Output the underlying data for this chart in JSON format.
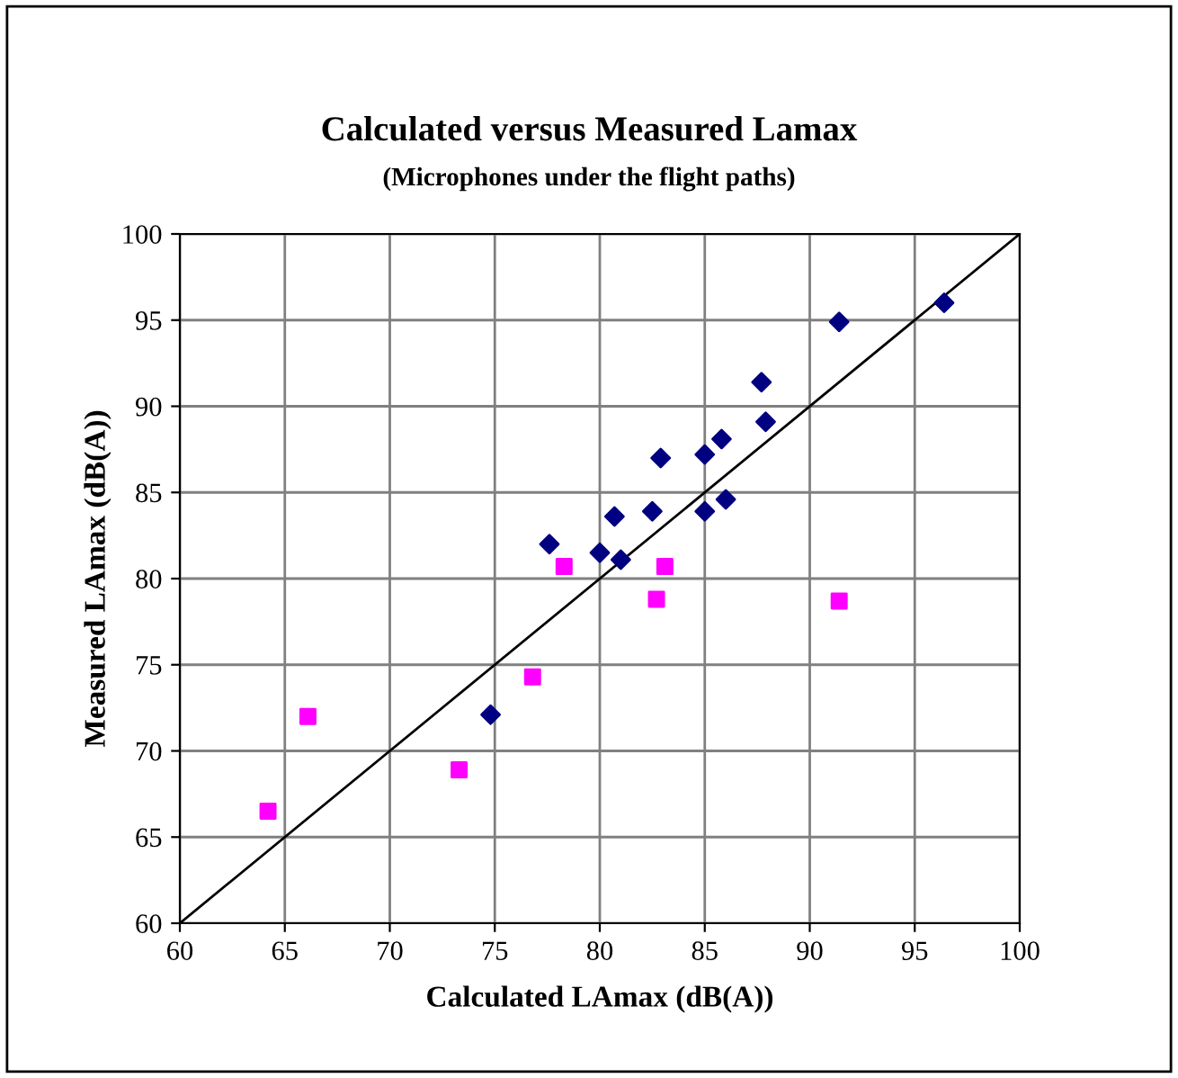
{
  "chart_data": {
    "type": "scatter",
    "title": "Calculated versus Measured Lamax",
    "subtitle": "(Microphones under the flight paths)",
    "xlabel": "Calculated LAmax (dB(A))",
    "ylabel": "Measured LAmax (dB(A))",
    "xlim": [
      60,
      100
    ],
    "ylim": [
      60,
      100
    ],
    "xticks": [
      60,
      65,
      70,
      75,
      80,
      85,
      90,
      95,
      100
    ],
    "yticks": [
      60,
      65,
      70,
      75,
      80,
      85,
      90,
      95,
      100
    ],
    "grid": true,
    "series": [
      {
        "marker": "diamond",
        "color": "#000080",
        "x": [
          96.4,
          91.4,
          87.7,
          87.9,
          85.8,
          85.0,
          82.9,
          86.0,
          85.0,
          82.5,
          80.7,
          77.6,
          80.0,
          81.0,
          74.8
        ],
        "values": [
          96.0,
          94.9,
          91.4,
          89.1,
          88.1,
          87.2,
          87.0,
          84.6,
          83.9,
          83.9,
          83.6,
          82.0,
          81.5,
          81.1,
          72.1
        ]
      },
      {
        "marker": "square",
        "color": "#ff00ff",
        "x": [
          64.2,
          66.1,
          73.3,
          76.8,
          78.3,
          83.1,
          82.7,
          91.4
        ],
        "values": [
          66.5,
          72.0,
          68.9,
          74.3,
          80.7,
          80.7,
          78.8,
          78.7
        ]
      },
      {
        "type": "line",
        "marker": "none",
        "color": "#000000",
        "x": [
          60,
          100
        ],
        "values": [
          60,
          100
        ]
      }
    ]
  }
}
